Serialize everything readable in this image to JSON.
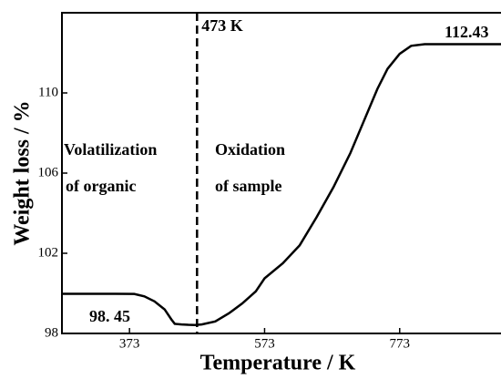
{
  "chart_data": {
    "type": "line",
    "xlabel": "Temperature / K",
    "ylabel": "Weight loss / %",
    "x": [
      273,
      300,
      340,
      380,
      395,
      410,
      425,
      435,
      440,
      450,
      460,
      470,
      480,
      500,
      520,
      540,
      560,
      573,
      600,
      625,
      650,
      675,
      700,
      720,
      740,
      755,
      773,
      790,
      810,
      850,
      923
    ],
    "series": [
      {
        "color": "#000000",
        "values": [
          99.98,
          99.98,
          99.98,
          99.97,
          99.85,
          99.6,
          99.2,
          98.7,
          98.48,
          98.45,
          98.43,
          98.42,
          98.45,
          98.6,
          99.0,
          99.5,
          100.1,
          100.75,
          101.5,
          102.4,
          103.8,
          105.3,
          107.0,
          108.6,
          110.2,
          111.2,
          111.95,
          112.35,
          112.43,
          112.43,
          112.43
        ]
      }
    ],
    "xlim": [
      273,
      923
    ],
    "xticks": [
      373,
      573,
      773
    ],
    "ylim": [
      98,
      114
    ],
    "yticks": [
      98,
      102,
      106,
      110
    ],
    "vline": {
      "value": 473,
      "label": "473 K"
    },
    "annotations": [
      "Volatilization",
      "of organic",
      "Oxidation",
      "of sample",
      "98. 45",
      "112.43"
    ]
  }
}
